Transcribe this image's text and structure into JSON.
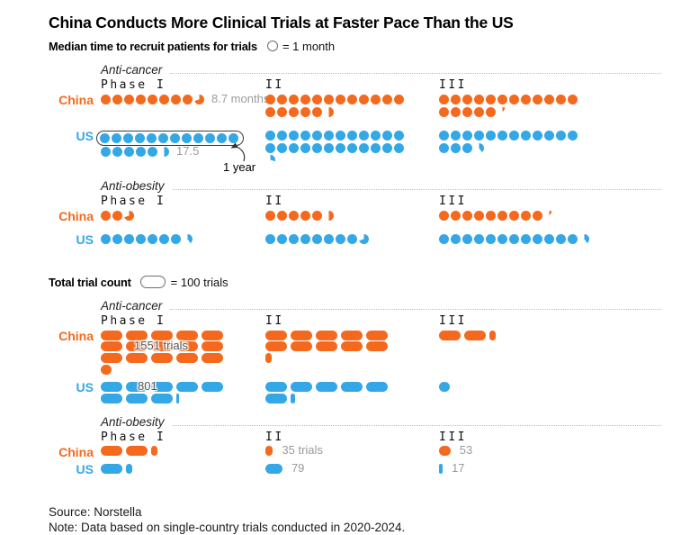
{
  "header": {
    "title": "China Conducts More Clinical Trials at Faster Pace Than the US"
  },
  "legend_time": {
    "label": "Median time to recruit patients for trials",
    "equals": "= 1 month"
  },
  "legend_count": {
    "label": "Total trial count",
    "equals": "= 100 trials"
  },
  "sections": {
    "anti_cancer": "Anti-cancer",
    "anti_obesity": "Anti-obesity"
  },
  "series_labels": {
    "china": "China",
    "us": "US"
  },
  "colors": {
    "china": "#f4691e",
    "us": "#34a7e6",
    "value_gray": "#9b9b9b"
  },
  "annotations": {
    "china_cancer_p1": "8.7 months",
    "us_cancer_p1": "17.5",
    "one_year": "1 year",
    "china_cancer_total_p1": "1551 trials",
    "us_cancer_total_p1": "801",
    "china_obesity_total_p2": "35 trials",
    "us_obesity_total_p2": "79",
    "china_obesity_total_p3": "53",
    "us_obesity_total_p3": "17"
  },
  "footer": {
    "source": "Source: Norstella",
    "note": "Note: Data based on single-country trials conducted in 2020-2024."
  },
  "chart_data": {
    "type": "pictogram",
    "phases": [
      "Phase I",
      "II",
      "III"
    ],
    "units": {
      "median": {
        "icon": "circle",
        "per_icon_months": 1,
        "icons_per_row": 12
      },
      "totals": {
        "icon": "pill",
        "per_icon_trials": 100,
        "icons_per_row": 5
      }
    },
    "median_months": {
      "anti_cancer": {
        "china": [
          8.7,
          17.5,
          17.1
        ],
        "us": [
          17.5,
          24.3,
          15.4
        ]
      },
      "anti_obesity": {
        "china": [
          2.7,
          5.5,
          9.1
        ],
        "us": [
          7.4,
          8.7,
          12.4
        ]
      }
    },
    "total_trials": {
      "anti_cancer": {
        "china": [
          1551,
          1030,
          230
        ],
        "us": [
          801,
          620,
          50
        ]
      },
      "anti_obesity": {
        "china": [
          230,
          35,
          53
        ],
        "us": [
          130,
          79,
          17
        ]
      }
    },
    "notes": {
      "us_anti_cancer_phase1_first_row": "circled, equals 1 year"
    }
  }
}
